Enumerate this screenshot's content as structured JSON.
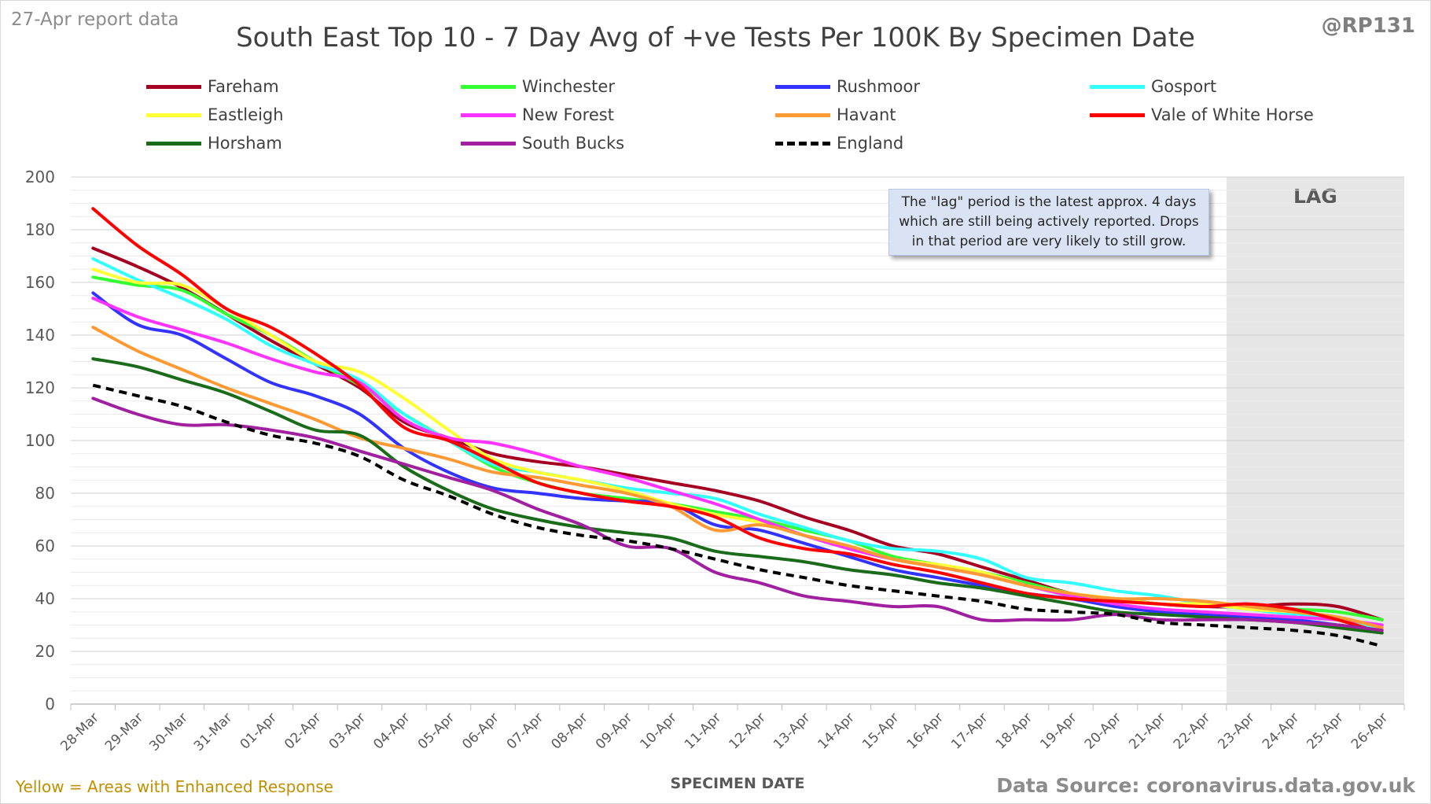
{
  "header": {
    "report_label": "27-Apr report data",
    "handle": "@RP131",
    "title": "South East Top 10 - 7 Day Avg of +ve Tests Per 100K By Specimen Date"
  },
  "footer": {
    "note": "Yellow = Areas with Enhanced Response",
    "source": "Data Source: coronavirus.data.gov.uk"
  },
  "annotation": {
    "lag_label": "LAG",
    "note": "The \"lag\" period is the latest approx. 4 days which are still being actively reported. Drops in that period are very likely to still grow."
  },
  "chart_data": {
    "type": "line",
    "title": "South East Top 10 - 7 Day Avg of +ve Tests Per 100K By Specimen Date",
    "xlabel": "SPECIMEN DATE",
    "ylabel": "",
    "ylim": [
      0,
      200
    ],
    "yticks": [
      0,
      20,
      40,
      60,
      80,
      100,
      120,
      140,
      160,
      180,
      200
    ],
    "grid": true,
    "legend_position": "top",
    "categories": [
      "28-Mar",
      "29-Mar",
      "30-Mar",
      "31-Mar",
      "01-Apr",
      "02-Apr",
      "03-Apr",
      "04-Apr",
      "05-Apr",
      "06-Apr",
      "07-Apr",
      "08-Apr",
      "09-Apr",
      "10-Apr",
      "11-Apr",
      "12-Apr",
      "13-Apr",
      "14-Apr",
      "15-Apr",
      "16-Apr",
      "17-Apr",
      "18-Apr",
      "19-Apr",
      "20-Apr",
      "21-Apr",
      "22-Apr",
      "23-Apr",
      "24-Apr",
      "25-Apr",
      "26-Apr"
    ],
    "lag_start": "23-Apr",
    "series": [
      {
        "name": "Fareham",
        "color": "#a50021",
        "dashed": false,
        "values": [
          173,
          166,
          158,
          148,
          138,
          129,
          120,
          107,
          101,
          95,
          92,
          90,
          87,
          84,
          81,
          77,
          71,
          66,
          60,
          57,
          52,
          47,
          42,
          40,
          38,
          37,
          37,
          38,
          37,
          32
        ]
      },
      {
        "name": "Winchester",
        "color": "#33ff33",
        "dashed": false,
        "values": [
          162,
          159,
          157,
          148,
          140,
          130,
          121,
          110,
          100,
          90,
          84,
          80,
          78,
          76,
          73,
          70,
          66,
          62,
          56,
          53,
          50,
          46,
          42,
          40,
          38,
          38,
          37,
          36,
          35,
          32
        ]
      },
      {
        "name": "Rushmoor",
        "color": "#3333ff",
        "dashed": false,
        "values": [
          156,
          144,
          140,
          131,
          122,
          117,
          110,
          97,
          88,
          82,
          80,
          78,
          77,
          76,
          68,
          66,
          61,
          56,
          51,
          48,
          45,
          42,
          40,
          37,
          35,
          34,
          33,
          32,
          30,
          28
        ]
      },
      {
        "name": "Gosport",
        "color": "#33ffff",
        "dashed": false,
        "values": [
          169,
          161,
          154,
          146,
          136,
          129,
          123,
          110,
          100,
          91,
          88,
          85,
          82,
          80,
          78,
          72,
          67,
          62,
          59,
          58,
          55,
          48,
          46,
          43,
          41,
          38,
          36,
          34,
          32,
          28
        ]
      },
      {
        "name": "Eastleigh",
        "color": "#ffff33",
        "dashed": false,
        "values": [
          165,
          160,
          159,
          150,
          140,
          130,
          126,
          116,
          104,
          93,
          88,
          85,
          81,
          76,
          72,
          69,
          64,
          60,
          55,
          53,
          50,
          45,
          42,
          40,
          38,
          38,
          36,
          35,
          33,
          29
        ]
      },
      {
        "name": "New Forest",
        "color": "#ff33ff",
        "dashed": false,
        "values": [
          154,
          147,
          142,
          137,
          131,
          126,
          122,
          108,
          101,
          99,
          95,
          90,
          86,
          81,
          76,
          70,
          64,
          59,
          55,
          52,
          49,
          45,
          41,
          38,
          36,
          35,
          34,
          33,
          32,
          30
        ]
      },
      {
        "name": "Havant",
        "color": "#ff9933",
        "dashed": false,
        "values": [
          143,
          134,
          127,
          120,
          114,
          108,
          101,
          97,
          93,
          88,
          86,
          83,
          80,
          75,
          66,
          68,
          64,
          60,
          55,
          52,
          49,
          45,
          42,
          40,
          40,
          39,
          37,
          35,
          33,
          29
        ]
      },
      {
        "name": "Vale of White Horse",
        "color": "#ff0000",
        "dashed": false,
        "values": [
          188,
          174,
          163,
          150,
          143,
          133,
          121,
          105,
          100,
          92,
          84,
          80,
          77,
          75,
          71,
          63,
          59,
          57,
          53,
          50,
          46,
          42,
          40,
          39,
          38,
          37,
          38,
          36,
          32,
          27
        ]
      },
      {
        "name": "Horsham",
        "color": "#1a6b1a",
        "dashed": false,
        "values": [
          131,
          128,
          123,
          118,
          111,
          104,
          102,
          90,
          81,
          74,
          70,
          67,
          65,
          63,
          58,
          56,
          54,
          51,
          49,
          46,
          44,
          41,
          38,
          35,
          34,
          33,
          32,
          31,
          29,
          27
        ]
      },
      {
        "name": "South Bucks",
        "color": "#a020a0",
        "dashed": false,
        "values": [
          116,
          110,
          106,
          106,
          104,
          101,
          96,
          91,
          86,
          81,
          74,
          68,
          60,
          59,
          50,
          46,
          41,
          39,
          37,
          37,
          32,
          32,
          32,
          34,
          32,
          32,
          32,
          31,
          30,
          28
        ]
      },
      {
        "name": "England",
        "color": "#000000",
        "dashed": true,
        "values": [
          121,
          117,
          113,
          107,
          102,
          99,
          94,
          85,
          79,
          72,
          67,
          64,
          62,
          59,
          55,
          51,
          48,
          45,
          43,
          41,
          39,
          36,
          35,
          34,
          31,
          30,
          29,
          28,
          26,
          22
        ]
      }
    ]
  }
}
